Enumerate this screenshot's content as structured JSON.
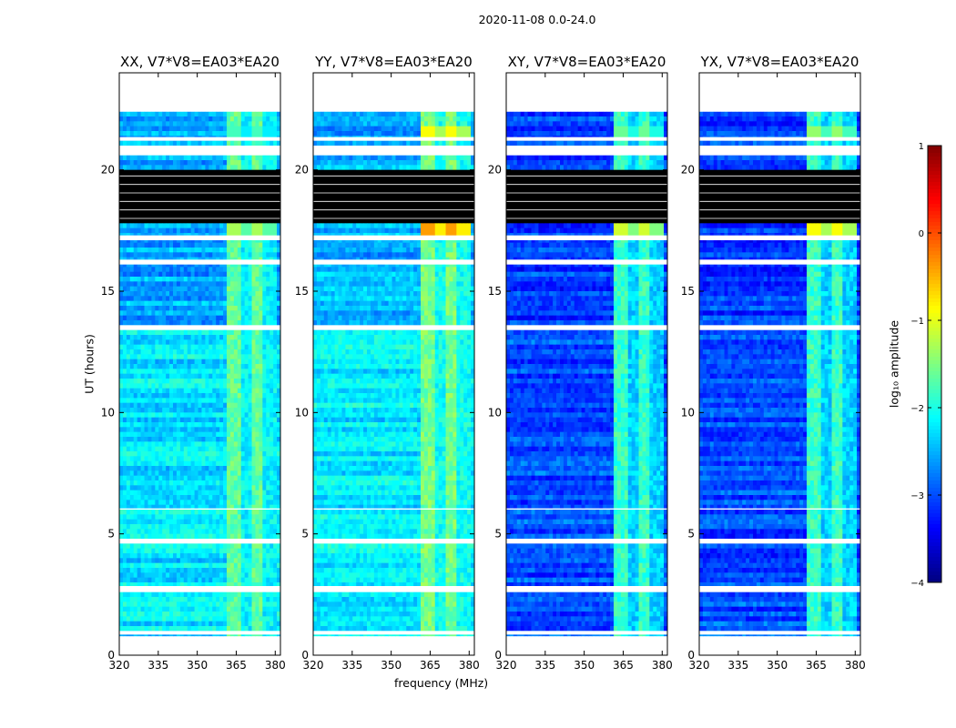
{
  "chart_data": {
    "type": "heatmap",
    "suptitle": "2020-11-08 0.0-24.0",
    "xlabel": "frequency (MHz)",
    "ylabel": "UT (hours)",
    "xlim": [
      320,
      382
    ],
    "ylim": [
      0,
      24
    ],
    "xticks": [
      "320",
      "335",
      "350",
      "365",
      "380"
    ],
    "yticks": [
      "0",
      "5",
      "10",
      "15",
      "20"
    ],
    "colorbar": {
      "label": "log₁₀ amplitude",
      "range": [
        -4,
        1
      ],
      "ticks": [
        "1",
        "0",
        "−1",
        "−2",
        "−3",
        "−4"
      ],
      "colormap": "jet"
    },
    "panels": [
      {
        "title": "XX, V7*V8=EA03*EA20",
        "pol": "XX",
        "baseline": "V7*V8=EA03*EA20",
        "base_level": -2.55,
        "low_hour_level": -2.25,
        "rfi_level": -1.8,
        "late_rfi_level": -1.3
      },
      {
        "title": "YY, V7*V8=EA03*EA20",
        "pol": "YY",
        "base_level": -2.5,
        "low_hour_level": -2.2,
        "rfi_level": -1.7,
        "late_rfi_level": -0.4
      },
      {
        "title": "XY, V7*V8=EA03*EA20",
        "pol": "XY",
        "base_level": -3.1,
        "low_hour_level": -3.0,
        "rfi_level": -2.0,
        "late_rfi_level": -1.1
      },
      {
        "title": "YX, V7*V8=EA03*EA20",
        "pol": "YX",
        "base_level": -3.1,
        "low_hour_level": -3.0,
        "rfi_level": -2.0,
        "late_rfi_level": -0.9
      }
    ],
    "rfi_band_mhz": [
      362,
      380
    ],
    "flagged_hours": [
      [
        0.85,
        1.0
      ],
      [
        2.6,
        2.85
      ],
      [
        4.6,
        4.8
      ],
      [
        6.0,
        6.05
      ],
      [
        13.4,
        13.6
      ],
      [
        16.1,
        16.3
      ],
      [
        17.1,
        17.3
      ],
      [
        20.6,
        21.0
      ],
      [
        21.2,
        21.35
      ],
      [
        22.4,
        24.0
      ]
    ],
    "no_data_hours": [
      [
        0.0,
        0.75
      ],
      [
        17.8,
        20.0
      ]
    ]
  }
}
